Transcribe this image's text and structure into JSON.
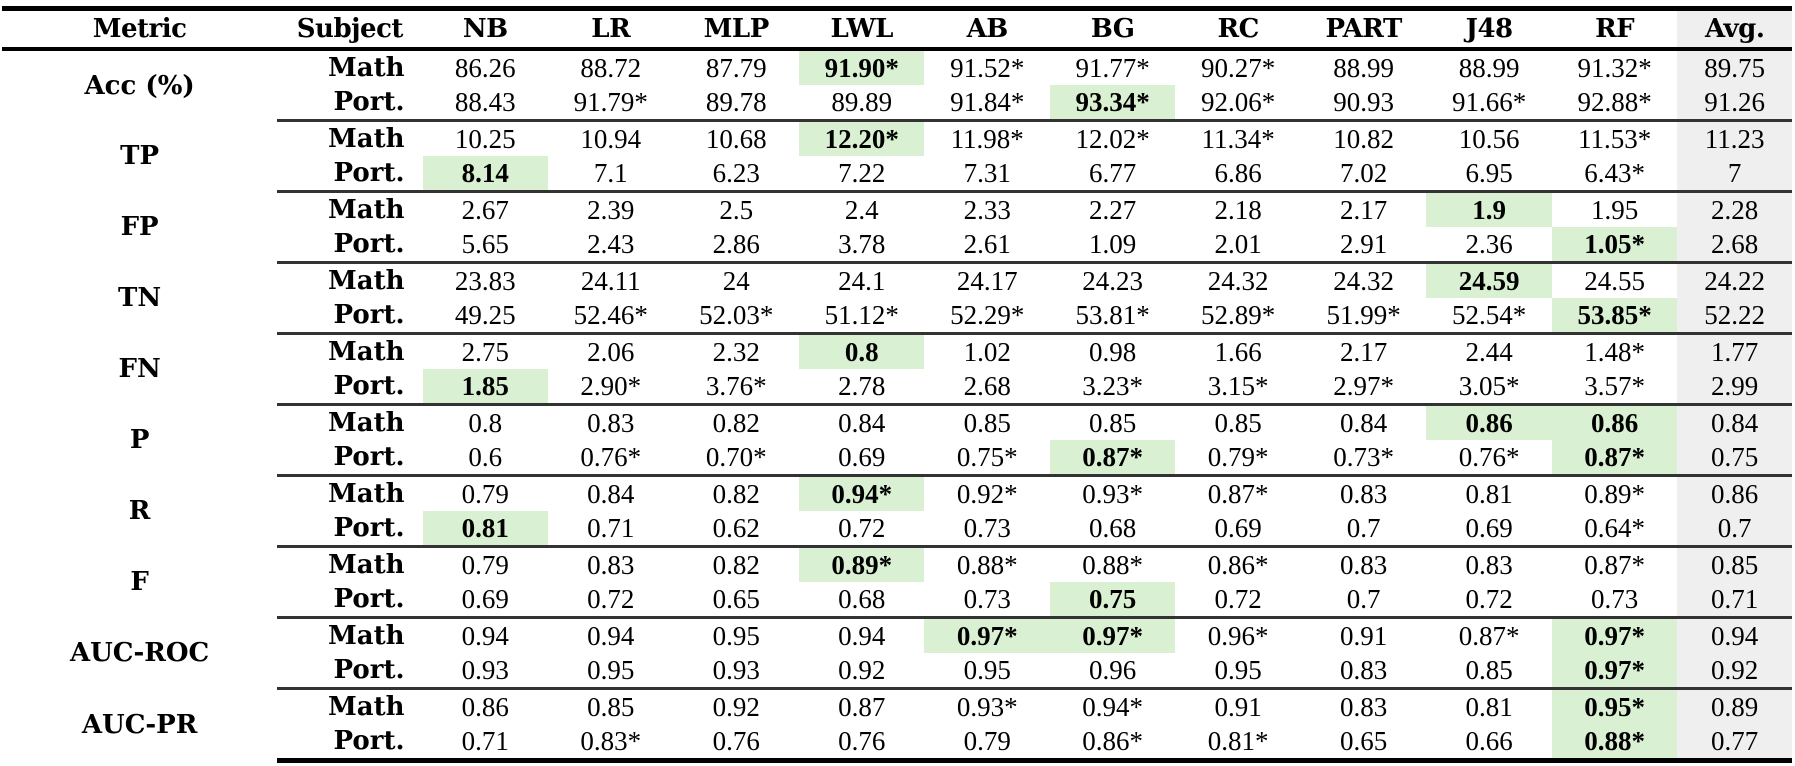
{
  "table": {
    "columns": [
      "Metric",
      "Subject",
      "NB",
      "LR",
      "MLP",
      "LWL",
      "AB",
      "BG",
      "RC",
      "PART",
      "J48",
      "RF",
      "Avg."
    ],
    "highlight_color": "#d9f1d2",
    "avg_column_color": "#efefef",
    "groups": [
      {
        "metric": "Acc (%)",
        "rows": [
          {
            "subject": "Math",
            "values": [
              "86.26",
              "88.72",
              "87.79",
              "91.90*",
              "91.52*",
              "91.77*",
              "90.27*",
              "88.99",
              "88.99",
              "91.32*",
              "89.75"
            ],
            "highlight": [
              3
            ]
          },
          {
            "subject": "Port.",
            "values": [
              "88.43",
              "91.79*",
              "89.78",
              "89.89",
              "91.84*",
              "93.34*",
              "92.06*",
              "90.93",
              "91.66*",
              "92.88*",
              "91.26"
            ],
            "highlight": [
              5
            ]
          }
        ]
      },
      {
        "metric": "TP",
        "rows": [
          {
            "subject": "Math",
            "values": [
              "10.25",
              "10.94",
              "10.68",
              "12.20*",
              "11.98*",
              "12.02*",
              "11.34*",
              "10.82",
              "10.56",
              "11.53*",
              "11.23"
            ],
            "highlight": [
              3
            ]
          },
          {
            "subject": "Port.",
            "values": [
              "8.14",
              "7.1",
              "6.23",
              "7.22",
              "7.31",
              "6.77",
              "6.86",
              "7.02",
              "6.95",
              "6.43*",
              "7"
            ],
            "highlight": [
              0
            ]
          }
        ]
      },
      {
        "metric": "FP",
        "rows": [
          {
            "subject": "Math",
            "values": [
              "2.67",
              "2.39",
              "2.5",
              "2.4",
              "2.33",
              "2.27",
              "2.18",
              "2.17",
              "1.9",
              "1.95",
              "2.28"
            ],
            "highlight": [
              8
            ]
          },
          {
            "subject": "Port.",
            "values": [
              "5.65",
              "2.43",
              "2.86",
              "3.78",
              "2.61",
              "1.09",
              "2.01",
              "2.91",
              "2.36",
              "1.05*",
              "2.68"
            ],
            "highlight": [
              9
            ]
          }
        ]
      },
      {
        "metric": "TN",
        "rows": [
          {
            "subject": "Math",
            "values": [
              "23.83",
              "24.11",
              "24",
              "24.1",
              "24.17",
              "24.23",
              "24.32",
              "24.32",
              "24.59",
              "24.55",
              "24.22"
            ],
            "highlight": [
              8
            ]
          },
          {
            "subject": "Port.",
            "values": [
              "49.25",
              "52.46*",
              "52.03*",
              "51.12*",
              "52.29*",
              "53.81*",
              "52.89*",
              "51.99*",
              "52.54*",
              "53.85*",
              "52.22"
            ],
            "highlight": [
              9
            ]
          }
        ]
      },
      {
        "metric": "FN",
        "rows": [
          {
            "subject": "Math",
            "values": [
              "2.75",
              "2.06",
              "2.32",
              "0.8",
              "1.02",
              "0.98",
              "1.66",
              "2.17",
              "2.44",
              "1.48*",
              "1.77"
            ],
            "highlight": [
              3
            ]
          },
          {
            "subject": "Port.",
            "values": [
              "1.85",
              "2.90*",
              "3.76*",
              "2.78",
              "2.68",
              "3.23*",
              "3.15*",
              "2.97*",
              "3.05*",
              "3.57*",
              "2.99"
            ],
            "highlight": [
              0
            ]
          }
        ]
      },
      {
        "metric": "P",
        "rows": [
          {
            "subject": "Math",
            "values": [
              "0.8",
              "0.83",
              "0.82",
              "0.84",
              "0.85",
              "0.85",
              "0.85",
              "0.84",
              "0.86",
              "0.86",
              "0.84"
            ],
            "highlight": [
              8,
              9
            ]
          },
          {
            "subject": "Port.",
            "values": [
              "0.6",
              "0.76*",
              "0.70*",
              "0.69",
              "0.75*",
              "0.87*",
              "0.79*",
              "0.73*",
              "0.76*",
              "0.87*",
              "0.75"
            ],
            "highlight": [
              5,
              9
            ]
          }
        ]
      },
      {
        "metric": "R",
        "rows": [
          {
            "subject": "Math",
            "values": [
              "0.79",
              "0.84",
              "0.82",
              "0.94*",
              "0.92*",
              "0.93*",
              "0.87*",
              "0.83",
              "0.81",
              "0.89*",
              "0.86"
            ],
            "highlight": [
              3
            ]
          },
          {
            "subject": "Port.",
            "values": [
              "0.81",
              "0.71",
              "0.62",
              "0.72",
              "0.73",
              "0.68",
              "0.69",
              "0.7",
              "0.69",
              "0.64*",
              "0.7"
            ],
            "highlight": [
              0
            ]
          }
        ]
      },
      {
        "metric": "F",
        "rows": [
          {
            "subject": "Math",
            "values": [
              "0.79",
              "0.83",
              "0.82",
              "0.89*",
              "0.88*",
              "0.88*",
              "0.86*",
              "0.83",
              "0.83",
              "0.87*",
              "0.85"
            ],
            "highlight": [
              3
            ]
          },
          {
            "subject": "Port.",
            "values": [
              "0.69",
              "0.72",
              "0.65",
              "0.68",
              "0.73",
              "0.75",
              "0.72",
              "0.7",
              "0.72",
              "0.73",
              "0.71"
            ],
            "highlight": [
              5
            ]
          }
        ]
      },
      {
        "metric": "AUC-ROC",
        "rows": [
          {
            "subject": "Math",
            "values": [
              "0.94",
              "0.94",
              "0.95",
              "0.94",
              "0.97*",
              "0.97*",
              "0.96*",
              "0.91",
              "0.87*",
              "0.97*",
              "0.94"
            ],
            "highlight": [
              4,
              5,
              9
            ]
          },
          {
            "subject": "Port.",
            "values": [
              "0.93",
              "0.95",
              "0.93",
              "0.92",
              "0.95",
              "0.96",
              "0.95",
              "0.83",
              "0.85",
              "0.97*",
              "0.92"
            ],
            "highlight": [
              9
            ]
          }
        ]
      },
      {
        "metric": "AUC-PR",
        "rows": [
          {
            "subject": "Math",
            "values": [
              "0.86",
              "0.85",
              "0.92",
              "0.87",
              "0.93*",
              "0.94*",
              "0.91",
              "0.83",
              "0.81",
              "0.95*",
              "0.89"
            ],
            "highlight": [
              9
            ]
          },
          {
            "subject": "Port.",
            "values": [
              "0.71",
              "0.83*",
              "0.76",
              "0.76",
              "0.79",
              "0.86*",
              "0.81*",
              "0.65",
              "0.66",
              "0.88*",
              "0.77"
            ],
            "highlight": [
              9
            ]
          }
        ]
      }
    ]
  }
}
